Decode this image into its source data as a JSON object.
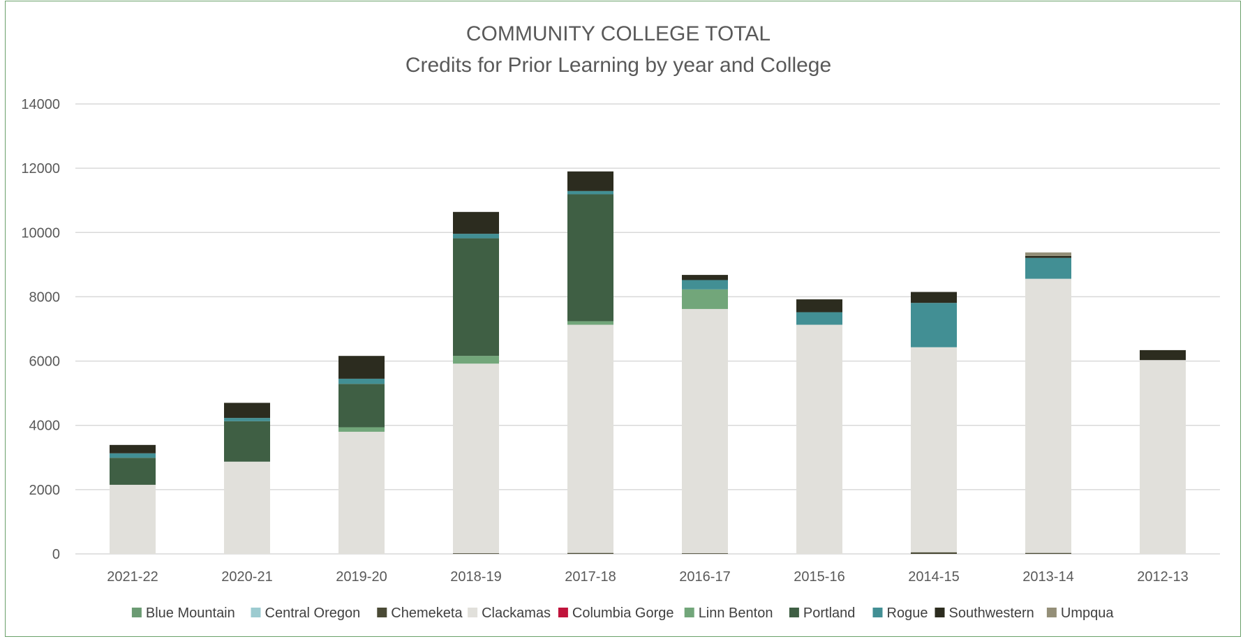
{
  "chart_data": {
    "type": "bar",
    "stacked": true,
    "title": "COMMUNITY COLLEGE TOTAL",
    "subtitle": "Credits for Prior Learning by year and College",
    "xlabel": "",
    "ylabel": "",
    "ylim": [
      0,
      14000
    ],
    "yticks": [
      0,
      2000,
      4000,
      6000,
      8000,
      10000,
      12000,
      14000
    ],
    "grid": true,
    "legend_position": "bottom",
    "categories": [
      "2021-22",
      "2020-21",
      "2019-20",
      "2018-19",
      "2017-18",
      "2016-17",
      "2015-16",
      "2014-15",
      "2013-14",
      "2012-13"
    ],
    "series": [
      {
        "name": "Blue Mountain",
        "color": "#6b9b73",
        "values": [
          0,
          0,
          0,
          0,
          0,
          0,
          0,
          0,
          0,
          0
        ]
      },
      {
        "name": "Central Oregon",
        "color": "#9ccbd0",
        "values": [
          0,
          0,
          0,
          0,
          0,
          0,
          0,
          0,
          0,
          0
        ]
      },
      {
        "name": "Chemeketa",
        "color": "#4a4a35",
        "values": [
          0,
          0,
          0,
          20,
          30,
          20,
          0,
          50,
          30,
          0
        ]
      },
      {
        "name": "Clackamas",
        "color": "#e1e0db",
        "values": [
          2150,
          2870,
          3800,
          5900,
          7100,
          7600,
          7130,
          6380,
          8530,
          6030
        ]
      },
      {
        "name": "Columbia Gorge",
        "color": "#c0143c",
        "values": [
          0,
          0,
          0,
          0,
          0,
          0,
          0,
          0,
          0,
          0
        ]
      },
      {
        "name": "Linn Benton",
        "color": "#72a67a",
        "values": [
          0,
          0,
          140,
          240,
          110,
          610,
          0,
          0,
          0,
          0
        ]
      },
      {
        "name": "Portland",
        "color": "#3f5f44",
        "values": [
          840,
          1260,
          1350,
          3660,
          3950,
          0,
          0,
          0,
          0,
          0
        ]
      },
      {
        "name": "Rogue",
        "color": "#428f94",
        "values": [
          140,
          100,
          160,
          140,
          100,
          290,
          390,
          1380,
          650,
          0
        ]
      },
      {
        "name": "Southwestern",
        "color": "#2c2c1f",
        "values": [
          260,
          470,
          710,
          680,
          610,
          160,
          400,
          340,
          60,
          310
        ]
      },
      {
        "name": "Umpqua",
        "color": "#948f78",
        "values": [
          0,
          0,
          0,
          0,
          0,
          0,
          0,
          0,
          110,
          0
        ]
      }
    ]
  }
}
